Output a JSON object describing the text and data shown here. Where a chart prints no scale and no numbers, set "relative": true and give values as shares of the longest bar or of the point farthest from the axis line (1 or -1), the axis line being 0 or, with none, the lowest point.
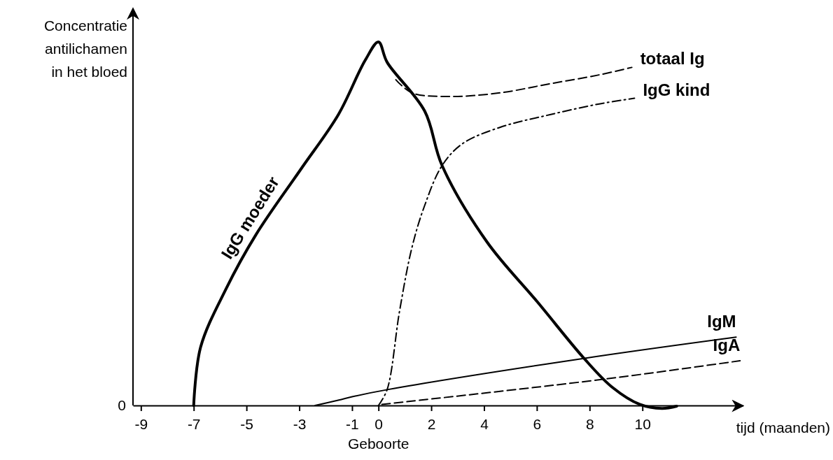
{
  "chart_data": {
    "type": "line",
    "relative": true,
    "xlabel": "tijd (maanden)",
    "ylabel": "Concentratie antilichamen in het bloed",
    "x": [
      -7,
      -6.74,
      -5.78,
      -4.64,
      -2.94,
      -1.52,
      -0.5,
      0,
      0.33,
      1.75,
      2.41,
      4.11,
      6.02,
      7.82,
      8.86,
      9.9,
      10.74,
      11.3
    ],
    "xlim": [
      -9.3,
      13.8
    ],
    "xticks": [
      -9,
      -7,
      -5,
      -3,
      -1,
      0,
      2,
      4,
      6,
      8,
      10
    ],
    "annotations": [
      {
        "text": "Geboorte",
        "x": 0,
        "y": 0
      },
      "0"
    ],
    "series": [
      {
        "name": "IgG moeder",
        "color": "#000000",
        "line_style": "solid",
        "values": [
          0,
          0.16,
          0.32,
          0.47,
          0.65,
          0.8,
          0.95,
          1,
          0.944,
          0.81,
          0.66,
          0.45,
          0.285,
          0.127,
          0.05,
          0.003,
          -0.008,
          -0.002
        ]
      },
      {
        "name": "totaal Ig",
        "color": "#000000",
        "line_style": "dashed",
        "x": [
          0.66,
          1.27,
          2.7,
          4.6,
          6.5,
          8.4,
          9.6
        ],
        "values": [
          0.896,
          0.86,
          0.85,
          0.86,
          0.885,
          0.91,
          0.93
        ]
      },
      {
        "name": "IgG kind",
        "color": "#000000",
        "line_style": "dashdot",
        "x": [
          0,
          0.33,
          0.8,
          1.27,
          1.75,
          2.41,
          3.18,
          4.6,
          6.5,
          8.4,
          9.7
        ],
        "values": [
          0,
          0.044,
          0.26,
          0.435,
          0.55,
          0.66,
          0.72,
          0.765,
          0.8,
          0.83,
          0.845
        ]
      },
      {
        "name": "IgM",
        "color": "#000000",
        "line_style": "solid",
        "x": [
          -2.4,
          -1.5,
          -1,
          0.37,
          7.82,
          13.55
        ],
        "values": [
          0,
          0.015,
          0.024,
          0.044,
          0.13,
          0.188
        ]
      },
      {
        "name": "IgA",
        "color": "#000000",
        "line_style": "dashed",
        "x": [
          0.13,
          8.4,
          13.7
        ],
        "values": [
          0.003,
          0.071,
          0.123
        ]
      }
    ]
  }
}
